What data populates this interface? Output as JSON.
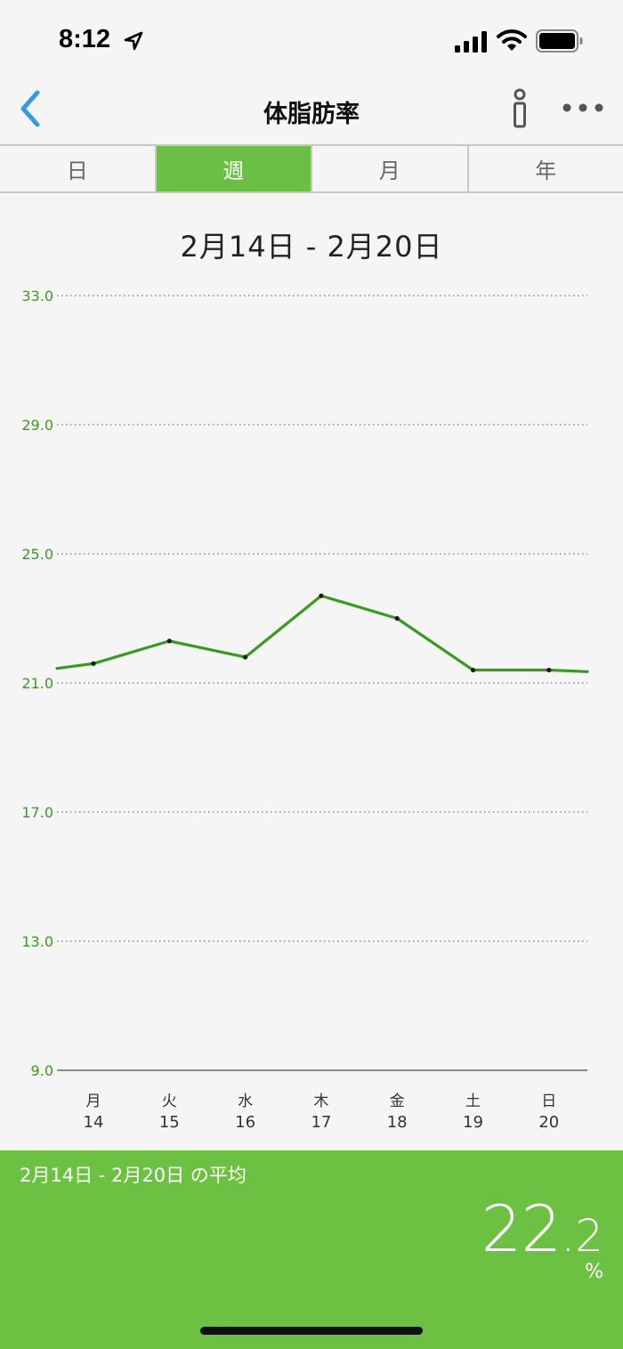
{
  "status_bar": {
    "time": "8:12"
  },
  "nav": {
    "title": "体脂肪率"
  },
  "tabs": [
    {
      "label": "日",
      "active": false
    },
    {
      "label": "週",
      "active": true
    },
    {
      "label": "月",
      "active": false
    },
    {
      "label": "年",
      "active": false
    }
  ],
  "range_title": "2月14日 - 2月20日",
  "chart_data": {
    "type": "line",
    "x_days": [
      "月",
      "火",
      "水",
      "木",
      "金",
      "土",
      "日"
    ],
    "x_dates": [
      "14",
      "15",
      "16",
      "17",
      "18",
      "19",
      "20"
    ],
    "values": [
      21.6,
      22.3,
      21.8,
      23.7,
      23.0,
      21.4,
      21.4
    ],
    "line_start_value": 21.45,
    "line_end_value": 21.35,
    "y_ticks": [
      "33.0",
      "29.0",
      "25.0",
      "21.0",
      "17.0",
      "13.0",
      "9.0"
    ],
    "ylim": [
      9.0,
      33.0
    ],
    "grid": "dotted",
    "line_color": "#3a9a1f"
  },
  "average": {
    "label": "2月14日 - 2月20日 の平均",
    "value_int": "22",
    "value_dec": ".2",
    "unit": "%"
  },
  "colors": {
    "accent": "#6cbf45",
    "back_arrow": "#2f9be0"
  }
}
